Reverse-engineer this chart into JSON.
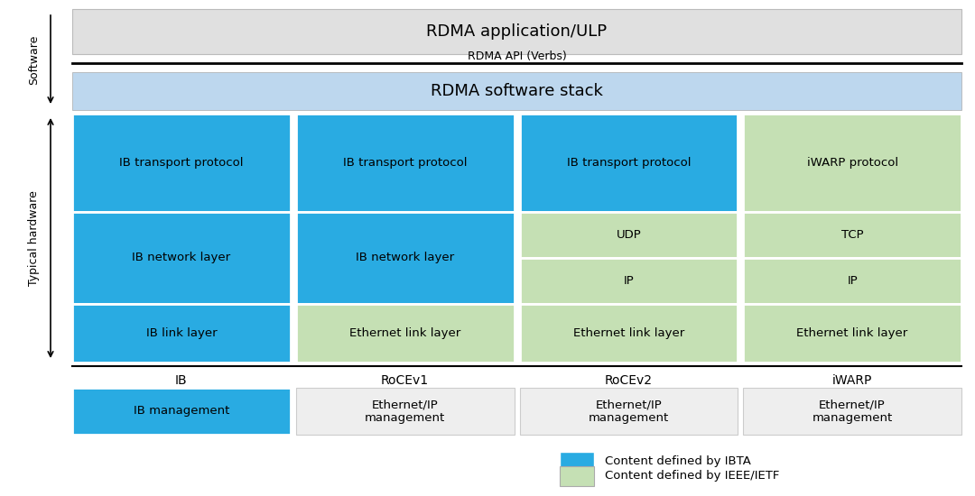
{
  "bg_color": "#ffffff",
  "blue_color": "#29abe2",
  "light_blue_color": "#bdd7ee",
  "green_color": "#c5e0b4",
  "gray_color": "#eeeeee",
  "title_text": "RDMA application/ULP",
  "api_text": "RDMA API (Verbs)",
  "stack_text": "RDMA software stack",
  "software_label": "Software",
  "hardware_label": "Typical hardware",
  "col_labels": [
    "IB",
    "RoCEv1",
    "RoCEv2",
    "iWARP"
  ],
  "legend_blue_text": "Content defined by IBTA",
  "legend_green_text": "Content defined by IEEE/IETF",
  "cells": [
    {
      "col": 0,
      "row": 0,
      "rowend": 0,
      "text": "IB transport protocol",
      "color": "blue"
    },
    {
      "col": 1,
      "row": 0,
      "rowend": 0,
      "text": "IB transport protocol",
      "color": "blue"
    },
    {
      "col": 2,
      "row": 0,
      "rowend": 0,
      "text": "IB transport protocol",
      "color": "blue"
    },
    {
      "col": 3,
      "row": 0,
      "rowend": 0,
      "text": "iWARP protocol",
      "color": "green"
    },
    {
      "col": 0,
      "row": 1,
      "rowend": 2,
      "text": "IB network layer",
      "color": "blue"
    },
    {
      "col": 1,
      "row": 1,
      "rowend": 2,
      "text": "IB network layer",
      "color": "blue"
    },
    {
      "col": 2,
      "row": 1,
      "rowend": 1,
      "text": "UDP",
      "color": "green"
    },
    {
      "col": 3,
      "row": 1,
      "rowend": 1,
      "text": "TCP",
      "color": "green"
    },
    {
      "col": 2,
      "row": 2,
      "rowend": 2,
      "text": "IP",
      "color": "green"
    },
    {
      "col": 3,
      "row": 2,
      "rowend": 2,
      "text": "IP",
      "color": "green"
    },
    {
      "col": 0,
      "row": 3,
      "rowend": 3,
      "text": "IB link layer",
      "color": "blue"
    },
    {
      "col": 1,
      "row": 3,
      "rowend": 3,
      "text": "Ethernet link layer",
      "color": "green"
    },
    {
      "col": 2,
      "row": 3,
      "rowend": 3,
      "text": "Ethernet link layer",
      "color": "green"
    },
    {
      "col": 3,
      "row": 3,
      "rowend": 3,
      "text": "Ethernet link layer",
      "color": "green"
    }
  ],
  "mgmt_cells": [
    {
      "col": 0,
      "text": "IB management",
      "color": "blue"
    },
    {
      "col": 1,
      "text": "Ethernet/IP\nmanagement",
      "color": "gray"
    },
    {
      "col": 2,
      "text": "Ethernet/IP\nmanagement",
      "color": "gray"
    },
    {
      "col": 3,
      "text": "Ethernet/IP\nmanagement",
      "color": "gray"
    }
  ],
  "fig_w": 10.8,
  "fig_h": 5.5,
  "dpi": 100
}
